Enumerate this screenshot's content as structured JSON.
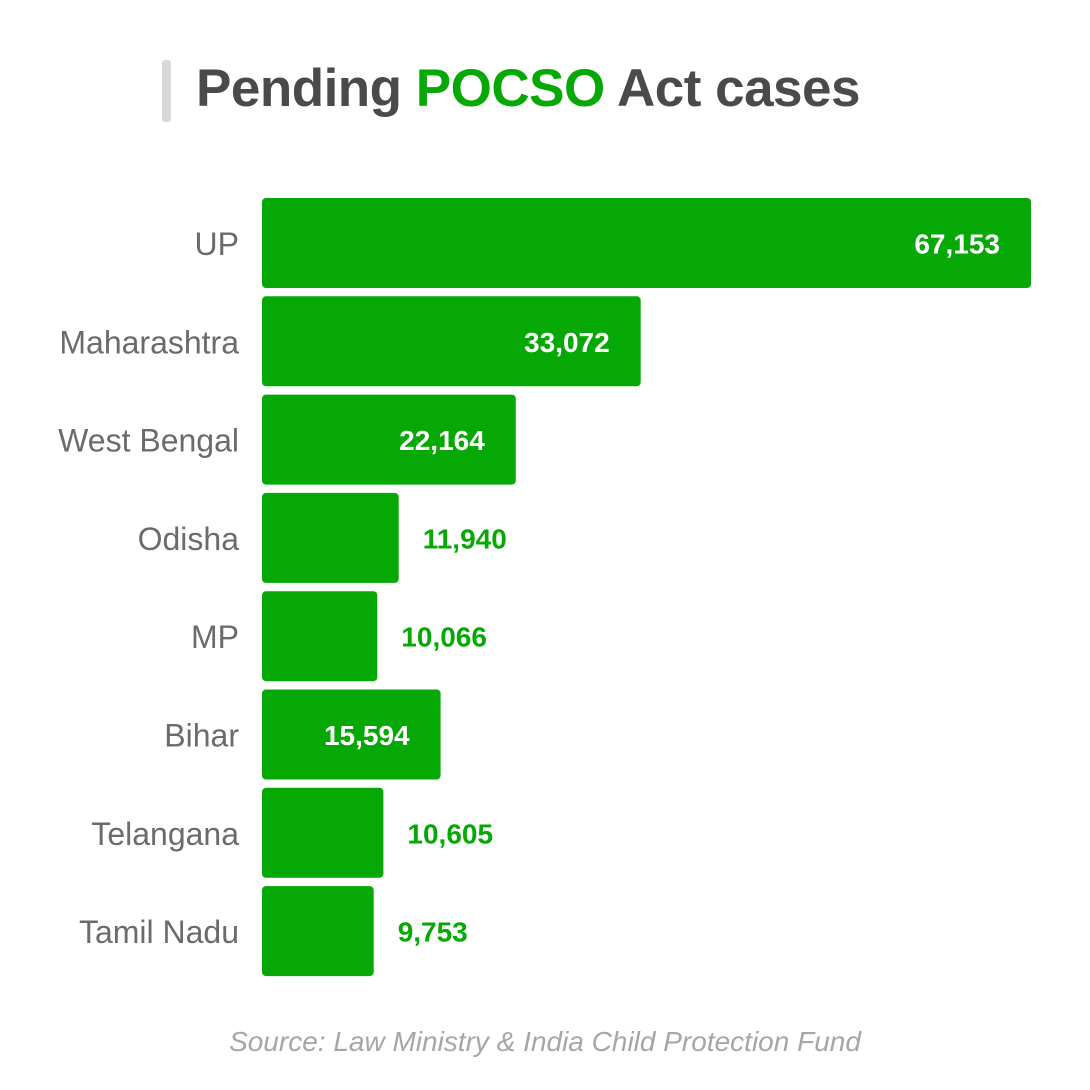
{
  "title": {
    "before": "Pending ",
    "highlight": "POCSO",
    "after": " Act cases"
  },
  "source": "Source: Law Ministry & India Child Protection Fund",
  "colors": {
    "bar": "#05a805",
    "highlight": "#05a805",
    "title": "#4a4a4a",
    "category_text": "#6b6b6b",
    "value_inside": "#ffffff",
    "value_outside": "#05a805",
    "source_text": "#a6a6a6"
  },
  "chart_data": {
    "type": "bar",
    "orientation": "horizontal",
    "categories": [
      "UP",
      "Maharashtra",
      "West Bengal",
      "Odisha",
      "MP",
      "Bihar",
      "Telangana",
      "Tamil Nadu"
    ],
    "values": [
      67153,
      33072,
      22164,
      11940,
      10066,
      15594,
      10605,
      9753
    ],
    "value_labels": [
      "67,153",
      "33,072",
      "22,164",
      "11,940",
      "10,066",
      "15,594",
      "10,605",
      "9,753"
    ],
    "xlim": [
      0,
      67153
    ],
    "grid": false,
    "legend": "none"
  }
}
